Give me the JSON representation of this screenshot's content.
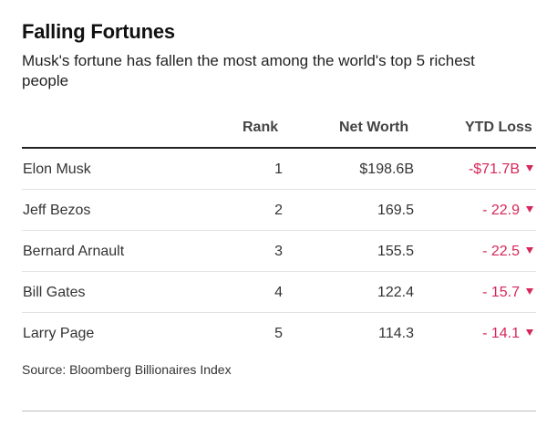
{
  "chart_data": {
    "type": "table",
    "title": "Falling Fortunes",
    "subtitle": "Musk's fortune has fallen the most among the world's top 5 richest people",
    "columns": [
      "",
      "Rank",
      "Net Worth",
      "YTD Loss"
    ],
    "rows": [
      {
        "name": "Elon Musk",
        "rank": "1",
        "net_worth": "$198.6B",
        "ytd_loss": "-$71.7B"
      },
      {
        "name": "Jeff Bezos",
        "rank": "2",
        "net_worth": "169.5",
        "ytd_loss": "- 22.9"
      },
      {
        "name": "Bernard Arnault",
        "rank": "3",
        "net_worth": "155.5",
        "ytd_loss": "- 22.5"
      },
      {
        "name": "Bill Gates",
        "rank": "4",
        "net_worth": "122.4",
        "ytd_loss": "- 15.7"
      },
      {
        "name": "Larry Page",
        "rank": "5",
        "net_worth": "114.3",
        "ytd_loss": "- 14.1"
      }
    ],
    "source": "Source: Bloomberg Billionaires Index",
    "loss_indicator_icon": "down-triangle-icon",
    "loss_color": "#d6275a"
  }
}
